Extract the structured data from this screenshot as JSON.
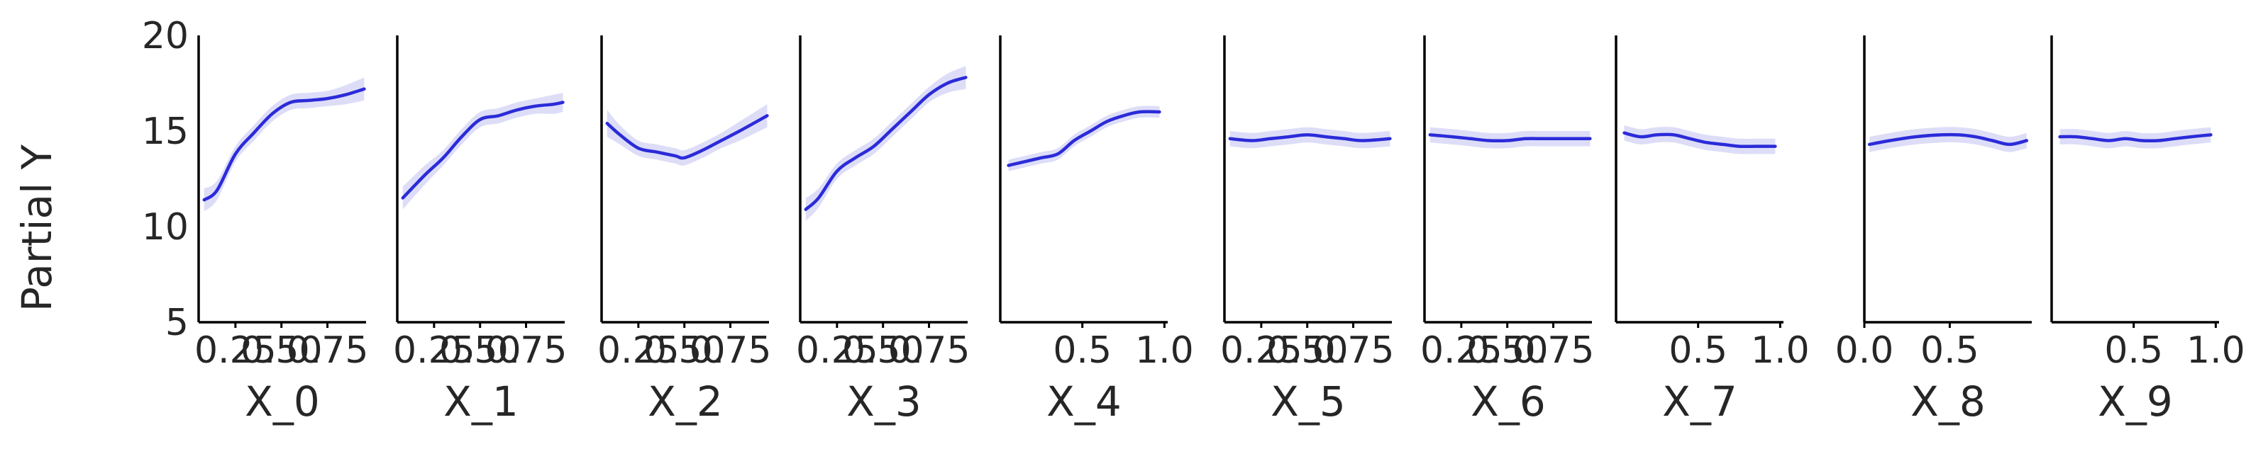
{
  "chart_data": {
    "type": "line",
    "ylabel": "Partial Y",
    "ylim": [
      5,
      20
    ],
    "yticks": [
      "20",
      "15",
      "10",
      "5"
    ],
    "line_color": "#2b2bd9",
    "band_color": "#d9d9f7",
    "panels": [
      {
        "xlabel": "X_0",
        "xlim": [
          0.05,
          0.96
        ],
        "xticks": [
          {
            "v": 0.25,
            "label": "0.25"
          },
          {
            "v": 0.5,
            "label": "0.50"
          },
          {
            "v": 0.75,
            "label": "0.75"
          }
        ],
        "x": [
          0.08,
          0.15,
          0.25,
          0.35,
          0.45,
          0.55,
          0.65,
          0.75,
          0.85,
          0.95
        ],
        "y": [
          11.4,
          11.9,
          13.8,
          14.9,
          15.9,
          16.5,
          16.6,
          16.7,
          16.9,
          17.2
        ],
        "band": [
          0.6,
          0.5,
          0.4,
          0.4,
          0.4,
          0.4,
          0.4,
          0.4,
          0.5,
          0.6
        ]
      },
      {
        "xlabel": "X_1",
        "xlim": [
          0.05,
          0.96
        ],
        "xticks": [
          {
            "v": 0.25,
            "label": "0.25"
          },
          {
            "v": 0.5,
            "label": "0.50"
          },
          {
            "v": 0.75,
            "label": "0.75"
          }
        ],
        "x": [
          0.08,
          0.2,
          0.3,
          0.4,
          0.5,
          0.6,
          0.7,
          0.8,
          0.9,
          0.95
        ],
        "y": [
          11.5,
          12.7,
          13.6,
          14.7,
          15.6,
          15.8,
          16.1,
          16.3,
          16.4,
          16.5
        ],
        "band": [
          0.6,
          0.5,
          0.4,
          0.4,
          0.4,
          0.4,
          0.4,
          0.4,
          0.5,
          0.5
        ]
      },
      {
        "xlabel": "X_2",
        "xlim": [
          0.05,
          0.96
        ],
        "xticks": [
          {
            "v": 0.25,
            "label": "0.25"
          },
          {
            "v": 0.5,
            "label": "0.50"
          },
          {
            "v": 0.75,
            "label": "0.75"
          }
        ],
        "x": [
          0.08,
          0.15,
          0.25,
          0.35,
          0.45,
          0.5,
          0.6,
          0.7,
          0.8,
          0.95
        ],
        "y": [
          15.4,
          14.8,
          14.1,
          13.9,
          13.7,
          13.6,
          14.0,
          14.5,
          15.0,
          15.8
        ],
        "band": [
          0.7,
          0.5,
          0.4,
          0.4,
          0.4,
          0.4,
          0.4,
          0.4,
          0.5,
          0.6
        ]
      },
      {
        "xlabel": "X_3",
        "xlim": [
          0.05,
          0.96
        ],
        "xticks": [
          {
            "v": 0.25,
            "label": "0.25"
          },
          {
            "v": 0.5,
            "label": "0.50"
          },
          {
            "v": 0.75,
            "label": "0.75"
          }
        ],
        "x": [
          0.08,
          0.15,
          0.25,
          0.35,
          0.45,
          0.55,
          0.65,
          0.75,
          0.85,
          0.95
        ],
        "y": [
          10.9,
          11.5,
          12.9,
          13.6,
          14.2,
          15.1,
          16.0,
          16.9,
          17.5,
          17.8
        ],
        "band": [
          0.6,
          0.5,
          0.4,
          0.4,
          0.4,
          0.4,
          0.4,
          0.4,
          0.5,
          0.6
        ]
      },
      {
        "xlabel": "X_4",
        "xlim": [
          0.0,
          1.02
        ],
        "xticks": [
          {
            "v": 0.5,
            "label": "0.5"
          },
          {
            "v": 1.0,
            "label": "1.0"
          }
        ],
        "x": [
          0.05,
          0.15,
          0.25,
          0.35,
          0.45,
          0.55,
          0.65,
          0.75,
          0.85,
          0.97
        ],
        "y": [
          13.2,
          13.4,
          13.6,
          13.8,
          14.5,
          15.0,
          15.5,
          15.8,
          16.0,
          16.0
        ],
        "band": [
          0.3,
          0.3,
          0.3,
          0.3,
          0.3,
          0.3,
          0.3,
          0.3,
          0.3,
          0.3
        ]
      },
      {
        "xlabel": "X_5",
        "xlim": [
          0.05,
          0.96
        ],
        "xticks": [
          {
            "v": 0.25,
            "label": "0.25"
          },
          {
            "v": 0.5,
            "label": "0.50"
          },
          {
            "v": 0.75,
            "label": "0.75"
          }
        ],
        "x": [
          0.08,
          0.2,
          0.3,
          0.4,
          0.5,
          0.6,
          0.7,
          0.8,
          0.95
        ],
        "y": [
          14.6,
          14.5,
          14.6,
          14.7,
          14.8,
          14.7,
          14.6,
          14.5,
          14.6
        ],
        "band": [
          0.4,
          0.4,
          0.4,
          0.4,
          0.4,
          0.4,
          0.4,
          0.4,
          0.4
        ]
      },
      {
        "xlabel": "X_6",
        "xlim": [
          0.05,
          0.96
        ],
        "xticks": [
          {
            "v": 0.25,
            "label": "0.25"
          },
          {
            "v": 0.5,
            "label": "0.50"
          },
          {
            "v": 0.75,
            "label": "0.75"
          }
        ],
        "x": [
          0.08,
          0.2,
          0.3,
          0.4,
          0.5,
          0.6,
          0.7,
          0.8,
          0.95
        ],
        "y": [
          14.8,
          14.7,
          14.6,
          14.5,
          14.5,
          14.6,
          14.6,
          14.6,
          14.6
        ],
        "band": [
          0.4,
          0.4,
          0.4,
          0.4,
          0.4,
          0.4,
          0.4,
          0.4,
          0.4
        ]
      },
      {
        "xlabel": "X_7",
        "xlim": [
          0.0,
          1.02
        ],
        "xticks": [
          {
            "v": 0.5,
            "label": "0.5"
          },
          {
            "v": 1.0,
            "label": "1.0"
          }
        ],
        "x": [
          0.05,
          0.15,
          0.25,
          0.35,
          0.45,
          0.55,
          0.65,
          0.75,
          0.85,
          0.97
        ],
        "y": [
          14.9,
          14.7,
          14.8,
          14.8,
          14.6,
          14.4,
          14.3,
          14.2,
          14.2,
          14.2
        ],
        "band": [
          0.4,
          0.4,
          0.4,
          0.4,
          0.4,
          0.4,
          0.4,
          0.4,
          0.4,
          0.4
        ]
      },
      {
        "xlabel": "X_8",
        "xlim": [
          0.0,
          0.98
        ],
        "xticks": [
          {
            "v": 0.0,
            "label": "0.0"
          },
          {
            "v": 0.5,
            "label": "0.5"
          }
        ],
        "x": [
          0.03,
          0.15,
          0.3,
          0.45,
          0.55,
          0.65,
          0.75,
          0.85,
          0.95
        ],
        "y": [
          14.3,
          14.5,
          14.7,
          14.8,
          14.8,
          14.7,
          14.5,
          14.3,
          14.5
        ],
        "band": [
          0.4,
          0.4,
          0.4,
          0.4,
          0.4,
          0.4,
          0.4,
          0.4,
          0.4
        ]
      },
      {
        "xlabel": "X_9",
        "xlim": [
          0.0,
          1.02
        ],
        "xticks": [
          {
            "v": 0.5,
            "label": "0.5"
          },
          {
            "v": 1.0,
            "label": "1.0"
          }
        ],
        "x": [
          0.05,
          0.15,
          0.25,
          0.35,
          0.45,
          0.55,
          0.65,
          0.75,
          0.85,
          0.97
        ],
        "y": [
          14.7,
          14.7,
          14.6,
          14.5,
          14.6,
          14.5,
          14.5,
          14.6,
          14.7,
          14.8
        ],
        "band": [
          0.4,
          0.4,
          0.4,
          0.4,
          0.4,
          0.4,
          0.4,
          0.4,
          0.4,
          0.4
        ]
      }
    ]
  }
}
